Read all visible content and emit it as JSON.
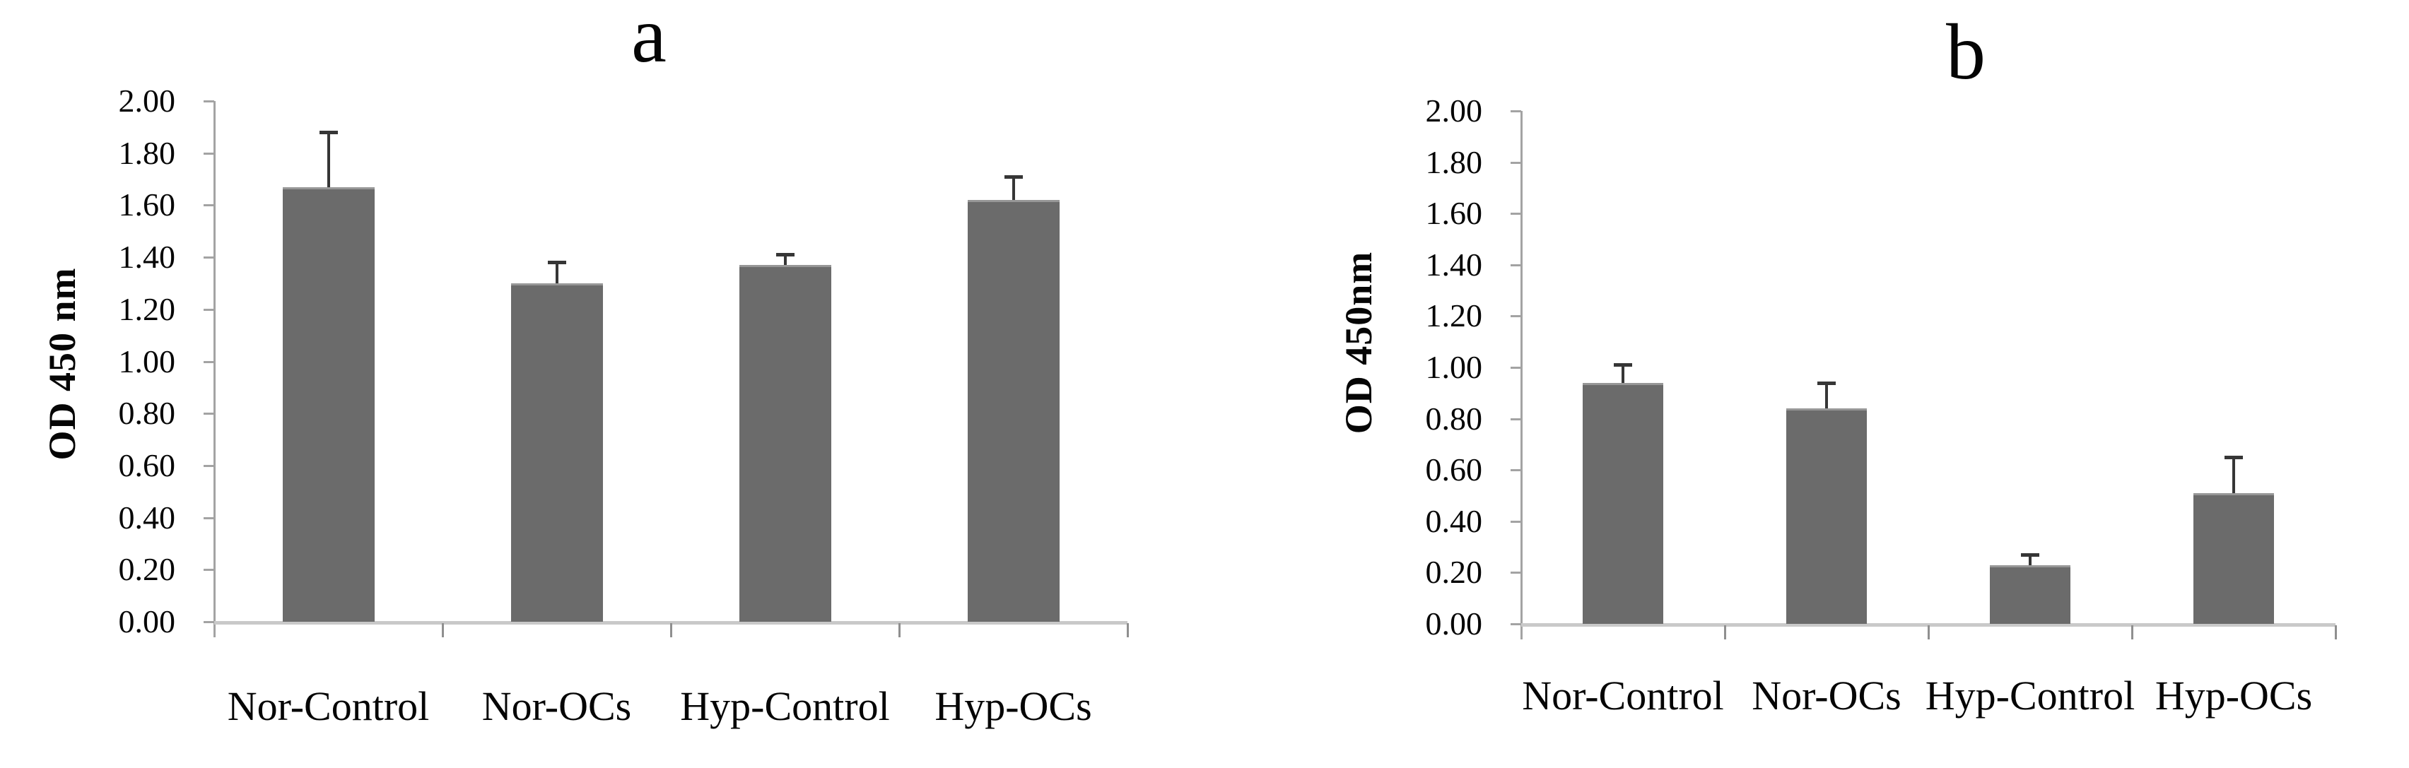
{
  "chart_data": [
    {
      "type": "bar",
      "panel": "a",
      "title": "a",
      "ylabel": "OD 450 nm",
      "xlabel": "",
      "categories": [
        "Nor-Control",
        "Nor-OCs",
        "Hyp-Control",
        "Hyp-OCs"
      ],
      "values": [
        1.67,
        1.3,
        1.37,
        1.62
      ],
      "errors_up": [
        0.21,
        0.08,
        0.04,
        0.09
      ],
      "ylim": [
        0.0,
        2.0
      ],
      "ytick_step": 0.2,
      "yticks": [
        "0.00",
        "0.20",
        "0.40",
        "0.60",
        "0.80",
        "1.00",
        "1.20",
        "1.40",
        "1.60",
        "1.80",
        "2.00"
      ],
      "grid": "off",
      "legend": "none",
      "bar_color": "#6b6b6b",
      "bar_top_edge_color": "#979797",
      "error_color": "#363636",
      "axis_color": "#a3a3a3",
      "baseline_color": "#c9c9c9",
      "tick_color": "#8f8f8f"
    },
    {
      "type": "bar",
      "panel": "b",
      "title": "b",
      "ylabel": "OD 450nm",
      "xlabel": "",
      "categories": [
        "Nor-Control",
        "Nor-OCs",
        "Hyp-Control",
        "Hyp-OCs"
      ],
      "values": [
        0.94,
        0.84,
        0.23,
        0.51
      ],
      "errors_up": [
        0.07,
        0.1,
        0.04,
        0.14
      ],
      "ylim": [
        0.0,
        2.0
      ],
      "ytick_step": 0.2,
      "yticks": [
        "0.00",
        "0.20",
        "0.40",
        "0.60",
        "0.80",
        "1.00",
        "1.20",
        "1.40",
        "1.60",
        "1.80",
        "2.00"
      ],
      "grid": "off",
      "legend": "none",
      "bar_color": "#6b6b6b",
      "bar_top_edge_color": "#979797",
      "error_color": "#363636",
      "axis_color": "#a3a3a3",
      "baseline_color": "#c9c9c9",
      "tick_color": "#8f8f8f"
    }
  ]
}
